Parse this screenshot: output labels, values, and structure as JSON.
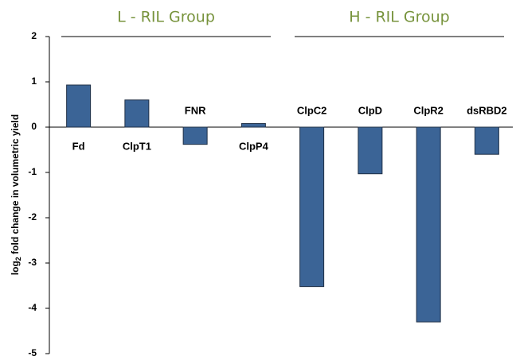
{
  "chart_data": {
    "type": "bar",
    "groups": [
      "L - RIL Group",
      "H - RIL Group"
    ],
    "categories": [
      "Fd",
      "ClpT1",
      "FNR",
      "ClpP4",
      "ClpC2",
      "ClpD",
      "ClpR2",
      "dsRBD2"
    ],
    "values": [
      0.93,
      0.6,
      -0.38,
      0.08,
      -3.52,
      -1.03,
      -4.3,
      -0.6
    ],
    "color": "#3b6496",
    "ylabel": {
      "base": "log",
      "subscript": "2",
      "rest": " fold change in volumetric yield"
    },
    "ylim": [
      -5,
      2
    ],
    "yticks": [
      -5,
      -4,
      -3,
      -2,
      -1,
      0,
      1,
      2
    ],
    "grid": false
  }
}
